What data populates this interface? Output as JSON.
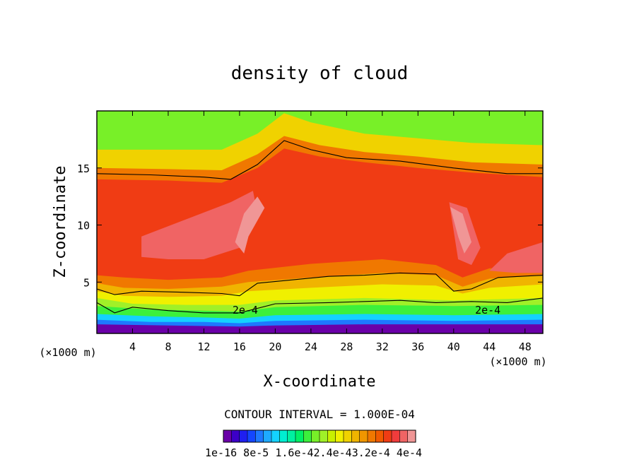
{
  "chart_data": {
    "type": "heatmap",
    "title": "density of cloud",
    "xlabel": "X-coordinate",
    "ylabel": "Z-coordinate",
    "x_unit_left": "(×1000 m)",
    "x_unit_right": "(×1000 m)",
    "xlim": [
      0,
      50
    ],
    "ylim": [
      0.5,
      20
    ],
    "x_ticks": [
      {
        "v": 4,
        "label": "4"
      },
      {
        "v": 8,
        "label": "8"
      },
      {
        "v": 12,
        "label": "12"
      },
      {
        "v": 16,
        "label": "16"
      },
      {
        "v": 20,
        "label": "20"
      },
      {
        "v": 24,
        "label": "24"
      },
      {
        "v": 28,
        "label": "28"
      },
      {
        "v": 32,
        "label": "32"
      },
      {
        "v": 36,
        "label": "36"
      },
      {
        "v": 40,
        "label": "40"
      },
      {
        "v": 44,
        "label": "44"
      },
      {
        "v": 48,
        "label": "48"
      }
    ],
    "y_ticks": [
      {
        "v": 5,
        "label": "5"
      },
      {
        "v": 10,
        "label": "10"
      },
      {
        "v": 15,
        "label": "15"
      }
    ],
    "contour_interval_text": "CONTOUR INTERVAL = 1.000E-04",
    "contour_labels": [
      {
        "x": 15.2,
        "z": 2.6,
        "label": "2e-4"
      },
      {
        "x": 42.4,
        "z": 2.6,
        "label": "2e-4"
      }
    ],
    "colorbar": {
      "levels": 24,
      "vmin": 1e-16,
      "vmax": 0.00044,
      "tick_text": "1e-16 8e-5 1.6e-42.4e-43.2e-4 4e-4",
      "colors": [
        "#6a00a8",
        "#3c00c8",
        "#1f1ff0",
        "#1446ff",
        "#1e78ff",
        "#1eaaff",
        "#14d2ff",
        "#00eed2",
        "#00f0a0",
        "#00f064",
        "#3cf03c",
        "#78f028",
        "#a0f028",
        "#c8f000",
        "#f0f000",
        "#f0d200",
        "#f0b400",
        "#f09600",
        "#f07800",
        "#f05a00",
        "#f03c14",
        "#f03c3c",
        "#f06464",
        "#f09696"
      ]
    },
    "bands": [
      {
        "name": "violet",
        "color": "#6a00a8",
        "top": [
          [
            0,
            1.3
          ],
          [
            8,
            1.2
          ],
          [
            16,
            1.1
          ],
          [
            20,
            1.2
          ],
          [
            30,
            1.3
          ],
          [
            40,
            1.3
          ],
          [
            50,
            1.3
          ]
        ]
      },
      {
        "name": "blue",
        "color": "#1e78ff",
        "top": [
          [
            0,
            1.7
          ],
          [
            6,
            1.5
          ],
          [
            12,
            1.5
          ],
          [
            16,
            1.4
          ],
          [
            20,
            1.6
          ],
          [
            30,
            1.7
          ],
          [
            40,
            1.6
          ],
          [
            50,
            1.7
          ]
        ]
      },
      {
        "name": "cyan",
        "color": "#14d2ff",
        "top": [
          [
            0,
            2.2
          ],
          [
            6,
            2.0
          ],
          [
            12,
            1.9
          ],
          [
            16,
            1.8
          ],
          [
            20,
            2.1
          ],
          [
            30,
            2.2
          ],
          [
            40,
            2.1
          ],
          [
            50,
            2.2
          ]
        ]
      },
      {
        "name": "green",
        "color": "#3cf03c",
        "top": [
          [
            0,
            2.9
          ],
          [
            6,
            2.6
          ],
          [
            12,
            2.5
          ],
          [
            16,
            2.4
          ],
          [
            20,
            2.8
          ],
          [
            30,
            3.0
          ],
          [
            40,
            2.9
          ],
          [
            50,
            3.0
          ]
        ]
      },
      {
        "name": "yellow-green",
        "color": "#a0f028",
        "top": [
          [
            0,
            3.6
          ],
          [
            4,
            3.1
          ],
          [
            10,
            3.0
          ],
          [
            16,
            3.0
          ],
          [
            20,
            3.4
          ],
          [
            30,
            3.6
          ],
          [
            40,
            3.4
          ],
          [
            50,
            3.6
          ]
        ]
      },
      {
        "name": "yellow",
        "color": "#f0f000",
        "top": [
          [
            0,
            4.2
          ],
          [
            3,
            3.8
          ],
          [
            8,
            3.7
          ],
          [
            14,
            3.8
          ],
          [
            17,
            4.2
          ],
          [
            24,
            4.5
          ],
          [
            32,
            4.8
          ],
          [
            38,
            4.7
          ],
          [
            41,
            4.0
          ],
          [
            44,
            4.5
          ],
          [
            50,
            4.8
          ]
        ]
      },
      {
        "name": "light-orange",
        "color": "#f0b400",
        "top": [
          [
            0,
            4.9
          ],
          [
            3,
            4.5
          ],
          [
            8,
            4.4
          ],
          [
            14,
            4.6
          ],
          [
            17,
            5.0
          ],
          [
            24,
            5.4
          ],
          [
            32,
            5.8
          ],
          [
            38,
            5.6
          ],
          [
            41,
            4.6
          ],
          [
            44,
            5.3
          ],
          [
            50,
            5.6
          ]
        ]
      },
      {
        "name": "orange",
        "color": "#f07800",
        "top": [
          [
            0,
            5.6
          ],
          [
            3,
            5.4
          ],
          [
            8,
            5.2
          ],
          [
            14,
            5.4
          ],
          [
            17,
            6.0
          ],
          [
            24,
            6.6
          ],
          [
            32,
            7.0
          ],
          [
            38,
            6.5
          ],
          [
            41,
            5.4
          ],
          [
            44,
            6.2
          ],
          [
            50,
            6.6
          ]
        ]
      },
      {
        "name": "red",
        "color": "#f03c14",
        "top": [
          [
            0,
            14.0
          ],
          [
            8,
            13.9
          ],
          [
            14,
            13.7
          ],
          [
            18,
            15.0
          ],
          [
            21,
            16.7
          ],
          [
            25,
            16.0
          ],
          [
            30,
            15.5
          ],
          [
            36,
            15.0
          ],
          [
            42,
            14.6
          ],
          [
            50,
            14.2
          ]
        ]
      },
      {
        "name": "orange-upper",
        "color": "#f07800",
        "top": [
          [
            0,
            15.0
          ],
          [
            8,
            14.9
          ],
          [
            14,
            14.8
          ],
          [
            18,
            16.2
          ],
          [
            21,
            17.8
          ],
          [
            25,
            17.0
          ],
          [
            30,
            16.4
          ],
          [
            36,
            16.0
          ],
          [
            42,
            15.5
          ],
          [
            50,
            15.3
          ]
        ]
      },
      {
        "name": "yellow-upper",
        "color": "#f0d200",
        "top": [
          [
            0,
            16.6
          ],
          [
            8,
            16.6
          ],
          [
            14,
            16.6
          ],
          [
            18,
            18.0
          ],
          [
            21,
            19.8
          ],
          [
            24,
            19.0
          ],
          [
            30,
            18.0
          ],
          [
            36,
            17.6
          ],
          [
            42,
            17.2
          ],
          [
            50,
            17.0
          ]
        ]
      },
      {
        "name": "green-upper",
        "color": "#78f028",
        "top": [
          [
            0,
            20
          ],
          [
            50,
            20
          ]
        ]
      }
    ],
    "contour_lines": [
      [
        [
          0,
          14.5
        ],
        [
          6,
          14.4
        ],
        [
          12,
          14.2
        ],
        [
          15,
          14.0
        ],
        [
          18,
          15.3
        ],
        [
          21,
          17.4
        ],
        [
          24,
          16.6
        ],
        [
          28,
          15.9
        ],
        [
          34,
          15.6
        ],
        [
          40,
          15.0
        ],
        [
          46,
          14.5
        ],
        [
          50,
          14.5
        ]
      ],
      [
        [
          0,
          4.4
        ],
        [
          2,
          3.9
        ],
        [
          5,
          4.2
        ],
        [
          10,
          4.1
        ],
        [
          14,
          4.0
        ],
        [
          16,
          3.8
        ],
        [
          18,
          4.9
        ],
        [
          22,
          5.2
        ],
        [
          26,
          5.5
        ],
        [
          30,
          5.6
        ],
        [
          34,
          5.8
        ],
        [
          38,
          5.7
        ],
        [
          40,
          4.2
        ],
        [
          42,
          4.4
        ],
        [
          45,
          5.4
        ],
        [
          50,
          5.6
        ]
      ],
      [
        [
          0,
          3.2
        ],
        [
          2,
          2.3
        ],
        [
          4,
          2.8
        ],
        [
          8,
          2.5
        ],
        [
          12,
          2.3
        ],
        [
          16,
          2.3
        ],
        [
          20,
          3.1
        ],
        [
          26,
          3.2
        ],
        [
          30,
          3.3
        ],
        [
          34,
          3.4
        ],
        [
          38,
          3.2
        ],
        [
          42,
          3.3
        ],
        [
          46,
          3.2
        ],
        [
          50,
          3.6
        ]
      ]
    ],
    "highlight_regions": [
      {
        "color": "#f06464",
        "pts": [
          [
            5,
            9
          ],
          [
            10,
            10.5
          ],
          [
            15,
            12
          ],
          [
            17.5,
            13
          ],
          [
            18,
            11
          ],
          [
            16,
            8
          ],
          [
            12,
            7
          ],
          [
            8,
            7
          ],
          [
            5,
            7.2
          ]
        ]
      },
      {
        "color": "#f09696",
        "pts": [
          [
            15.5,
            8.5
          ],
          [
            16.5,
            11
          ],
          [
            18,
            12.5
          ],
          [
            18.8,
            11.5
          ],
          [
            17,
            9
          ],
          [
            16.5,
            7.5
          ]
        ]
      },
      {
        "color": "#f06464",
        "pts": [
          [
            39.5,
            12
          ],
          [
            41.5,
            11.5
          ],
          [
            43,
            8
          ],
          [
            42,
            6.5
          ],
          [
            40.5,
            7
          ]
        ]
      },
      {
        "color": "#f09696",
        "pts": [
          [
            39.6,
            11.6
          ],
          [
            41,
            11
          ],
          [
            42,
            8.5
          ],
          [
            41.2,
            7.5
          ],
          [
            40.5,
            9
          ]
        ]
      },
      {
        "color": "#f06464",
        "pts": [
          [
            44,
            6
          ],
          [
            46,
            7.5
          ],
          [
            50,
            8.5
          ],
          [
            50,
            5.8
          ],
          [
            47,
            5.8
          ]
        ]
      }
    ]
  }
}
